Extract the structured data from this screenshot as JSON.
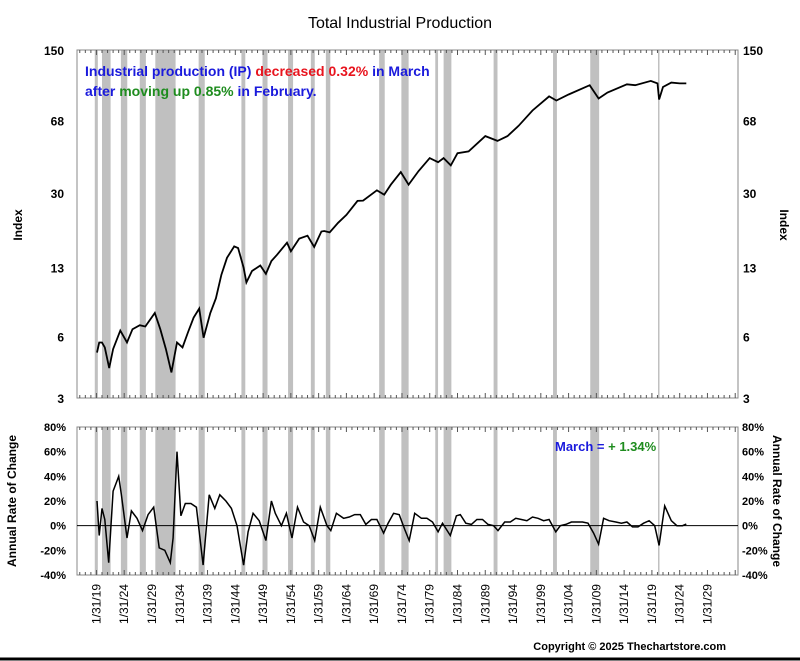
{
  "chart_data": [
    {
      "type": "line",
      "title": "Total Industrial Production",
      "ylabel": "Index",
      "yscale": "log",
      "ylim": [
        3,
        150
      ],
      "yticks": [
        "150",
        "68",
        "30",
        "13",
        "6",
        "3"
      ],
      "ytick_values": [
        150,
        68,
        30,
        13,
        6,
        3
      ],
      "annotation": {
        "line1": [
          {
            "text": "Industrial production (IP) ",
            "color": "#1a1adc"
          },
          {
            "text": "decreased 0.32%",
            "color": "#e8141e"
          },
          {
            "text": " in March",
            "color": "#1a1adc"
          }
        ],
        "line2": [
          {
            "text": "after ",
            "color": "#1a1adc"
          },
          {
            "text": "moving up 0.85%",
            "color": "#1e8c1e"
          },
          {
            "text": " in February.",
            "color": "#1a1adc"
          }
        ]
      },
      "series": [
        {
          "name": "Total Industrial Production",
          "x": [
            1919.1,
            1919.5,
            1920.0,
            1920.5,
            1921.3,
            1922.0,
            1923.3,
            1924.5,
            1925.5,
            1926.8,
            1927.8,
            1929.5,
            1930.5,
            1931.5,
            1932.5,
            1933.5,
            1934.5,
            1935.5,
            1936.5,
            1937.5,
            1938.3,
            1939.5,
            1940.5,
            1941.5,
            1942.5,
            1943.8,
            1944.5,
            1945.5,
            1946.0,
            1947.0,
            1948.5,
            1949.5,
            1950.5,
            1951.5,
            1953.3,
            1954.0,
            1955.5,
            1957.0,
            1958.2,
            1959.5,
            1960.0,
            1961.0,
            1962.5,
            1964.0,
            1966.0,
            1967.0,
            1969.5,
            1970.8,
            1972.0,
            1973.8,
            1975.2,
            1977.0,
            1979.0,
            1980.5,
            1981.5,
            1982.8,
            1984.0,
            1986.0,
            1989.0,
            1991.2,
            1993.0,
            1995.0,
            1997.5,
            2000.5,
            2001.8,
            2004.0,
            2007.8,
            2009.4,
            2011.0,
            2014.5,
            2016.0,
            2018.8,
            2020.0,
            2020.3,
            2021.0,
            2022.5,
            2024.0,
            2025.2
          ],
          "values": [
            5.0,
            5.6,
            5.6,
            5.3,
            4.2,
            5.2,
            6.4,
            5.6,
            6.5,
            6.8,
            6.7,
            7.8,
            6.5,
            5.2,
            4.0,
            5.6,
            5.3,
            6.3,
            7.4,
            8.2,
            5.9,
            7.8,
            9.2,
            12,
            14.5,
            16.5,
            16.2,
            13,
            11,
            12.5,
            13.3,
            12.1,
            14,
            15,
            17.2,
            15.6,
            18,
            18.6,
            16.4,
            19.5,
            19.6,
            19.3,
            21.5,
            23.5,
            27.5,
            27.6,
            31,
            29.5,
            33,
            38,
            33,
            38.5,
            44.5,
            42.5,
            44.5,
            41,
            47,
            48,
            57,
            54,
            57,
            64,
            76,
            89,
            85,
            91,
            101,
            87,
            93,
            102,
            101,
            106,
            103,
            86,
            99,
            104,
            103,
            103
          ]
        }
      ]
    },
    {
      "type": "line",
      "ylabel": "Annual Rate of Change",
      "ylim": [
        -40,
        80
      ],
      "yticks": [
        "80%",
        "60%",
        "40%",
        "20%",
        "0%",
        "-20%",
        "-40%"
      ],
      "ytick_values": [
        80,
        60,
        40,
        20,
        0,
        -20,
        -40
      ],
      "annotation": {
        "label": "March = ",
        "value": "+ 1.34%",
        "label_color": "#1a1adc",
        "value_color": "#1e8c1e"
      },
      "series": [
        {
          "name": "Annual Rate of Change",
          "x": [
            1919.1,
            1919.5,
            1920.0,
            1920.5,
            1921.2,
            1922.0,
            1923.0,
            1923.5,
            1924.5,
            1925.3,
            1926.3,
            1927.3,
            1928.3,
            1929.3,
            1930.3,
            1931.3,
            1932.3,
            1932.8,
            1933.5,
            1934.2,
            1935.0,
            1936.0,
            1937.0,
            1938.2,
            1939.3,
            1940.3,
            1941.2,
            1942.3,
            1943.3,
            1944.3,
            1945.5,
            1946.3,
            1947.2,
            1948.3,
            1949.5,
            1950.5,
            1951.2,
            1952.3,
            1953.2,
            1954.2,
            1955.2,
            1956.3,
            1957.3,
            1958.3,
            1959.3,
            1960.5,
            1961.2,
            1962.2,
            1963.5,
            1964.5,
            1965.5,
            1966.5,
            1967.5,
            1968.5,
            1969.5,
            1970.7,
            1971.5,
            1972.5,
            1973.5,
            1974.5,
            1975.3,
            1976.3,
            1977.5,
            1978.5,
            1979.5,
            1980.5,
            1981.3,
            1982.7,
            1983.8,
            1984.5,
            1985.5,
            1986.5,
            1987.5,
            1988.5,
            1989.5,
            1990.5,
            1991.3,
            1992.5,
            1993.5,
            1994.5,
            1995.5,
            1996.5,
            1997.5,
            1998.5,
            1999.5,
            2000.5,
            2001.7,
            2002.5,
            2003.5,
            2004.5,
            2005.5,
            2006.5,
            2007.5,
            2008.5,
            2009.4,
            2010.3,
            2011.3,
            2012.5,
            2013.5,
            2014.5,
            2015.5,
            2016.5,
            2017.5,
            2018.5,
            2019.5,
            2020.3,
            2021.3,
            2022.5,
            2023.5,
            2024.5,
            2025.2
          ],
          "values": [
            20,
            -8,
            14,
            5,
            -30,
            28,
            40,
            25,
            -10,
            12,
            6,
            -4,
            9,
            15,
            -18,
            -20,
            -30,
            -10,
            60,
            8,
            18,
            18,
            15,
            -32,
            25,
            14,
            25,
            20,
            14,
            0,
            -32,
            -5,
            10,
            4,
            -12,
            20,
            10,
            0,
            10,
            -10,
            15,
            3,
            0,
            -12,
            15,
            0,
            -4,
            10,
            6,
            7,
            9,
            9,
            1,
            5,
            5,
            -6,
            2,
            10,
            9,
            -3,
            -12,
            10,
            6,
            6,
            3,
            -5,
            2,
            -8,
            8,
            9,
            2,
            1,
            5,
            5,
            1,
            0,
            -4,
            3,
            3,
            6,
            5,
            4,
            7,
            6,
            4,
            5,
            -5,
            0,
            1,
            3,
            3,
            3,
            2,
            -6,
            -15,
            6,
            4,
            3,
            2,
            3,
            -1,
            -1,
            2,
            4,
            0,
            -16,
            16,
            4,
            0,
            0,
            1.3
          ]
        }
      ]
    }
  ],
  "x_axis": {
    "labels": [
      "1/31/19",
      "1/31/24",
      "1/31/29",
      "1/31/34",
      "1/31/39",
      "1/31/44",
      "1/31/49",
      "1/31/54",
      "1/31/59",
      "1/31/64",
      "1/31/69",
      "1/31/74",
      "1/31/79",
      "1/31/84",
      "1/31/89",
      "1/31/94",
      "1/31/99",
      "1/31/04",
      "1/31/09",
      "1/31/14",
      "1/31/19",
      "1/31/24",
      "1/31/29"
    ],
    "years": [
      1919,
      1924,
      1929,
      1934,
      1939,
      1944,
      1949,
      1954,
      1959,
      1964,
      1969,
      1974,
      1979,
      1984,
      1989,
      1994,
      1999,
      2004,
      2009,
      2014,
      2019,
      2024,
      2029
    ],
    "range": [
      1915.5,
      2034.5
    ]
  },
  "recessions": [
    [
      1918.7,
      1919.25
    ],
    [
      1920.0,
      1921.55
    ],
    [
      1923.4,
      1924.55
    ],
    [
      1926.8,
      1927.9
    ],
    [
      1929.6,
      1933.25
    ],
    [
      1937.4,
      1938.5
    ],
    [
      1945.1,
      1945.8
    ],
    [
      1948.9,
      1949.8
    ],
    [
      1953.5,
      1954.4
    ],
    [
      1957.6,
      1958.3
    ],
    [
      1960.3,
      1961.1
    ],
    [
      1969.9,
      1970.9
    ],
    [
      1973.9,
      1975.2
    ],
    [
      1980.0,
      1980.5
    ],
    [
      1981.5,
      1982.9
    ],
    [
      1990.5,
      1991.2
    ],
    [
      2001.2,
      2001.9
    ],
    [
      2007.9,
      2009.5
    ],
    [
      2020.1,
      2020.35
    ]
  ],
  "colors": {
    "line": "#000000",
    "recession": "#c0c0c0",
    "frame": "#888888"
  },
  "footer": {
    "copyright": "Copyright © 2025 Thechartstore.com"
  }
}
